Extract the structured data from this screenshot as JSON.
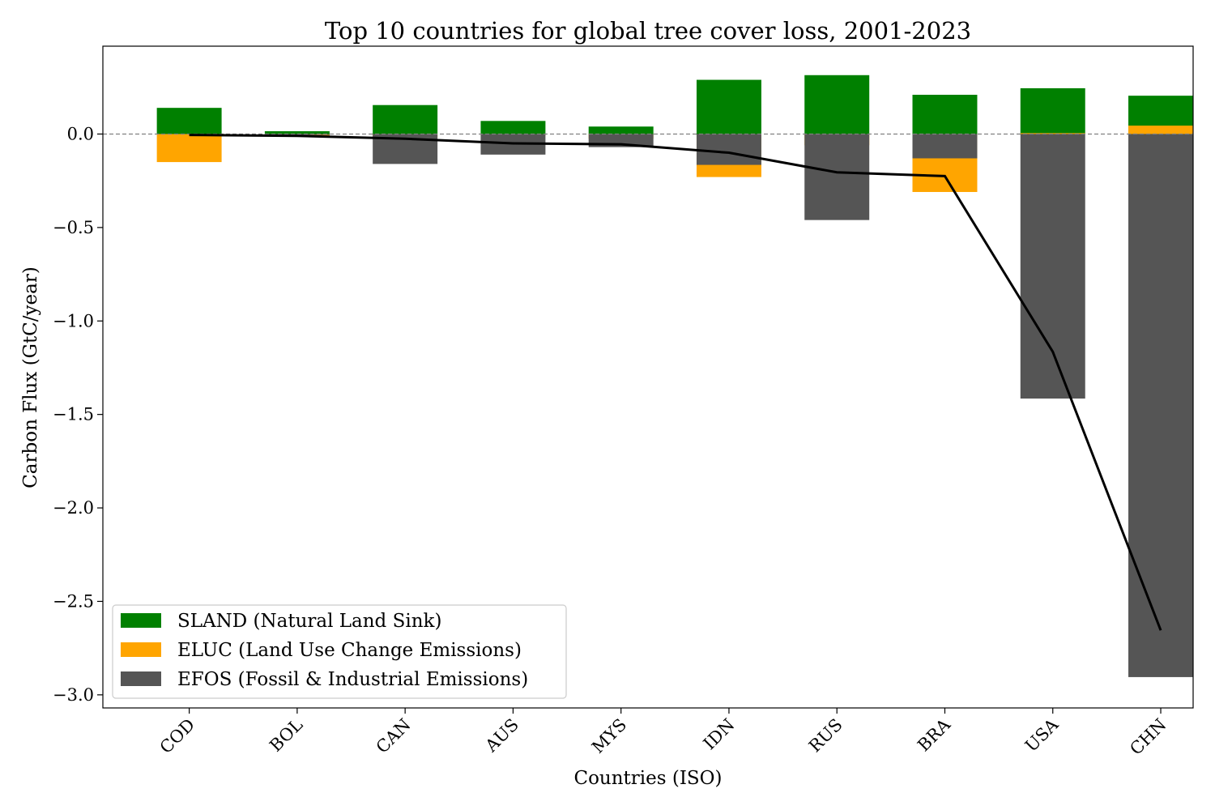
{
  "chart_data": {
    "type": "bar",
    "title": "Top 10 countries for global tree cover loss, 2001-2023",
    "xlabel": "Countries (ISO)",
    "ylabel": "Carbon Flux (GtC/year)",
    "ylim": [
      -3.07,
      0.47
    ],
    "yticks": [
      0.0,
      -0.5,
      -1.0,
      -1.5,
      -2.0,
      -2.5,
      -3.0
    ],
    "ytick_labels": [
      "0.0",
      "−0.5",
      "−1.0",
      "−1.5",
      "−2.0",
      "−2.5",
      "−3.0"
    ],
    "categories": [
      "COD",
      "BOL",
      "CAN",
      "AUS",
      "MYS",
      "IDN",
      "RUS",
      "BRA",
      "USA",
      "CHN"
    ],
    "series": [
      {
        "name": "SLAND (Natural Land Sink)",
        "color": "#008000",
        "values": [
          0.14,
          0.015,
          0.155,
          0.07,
          0.04,
          0.29,
          0.315,
          0.21,
          0.245,
          0.205
        ]
      },
      {
        "name": "ELUC (Land Use Change Emissions)",
        "color": "#FFA500",
        "values": [
          -0.15,
          -0.01,
          -0.02,
          -0.01,
          -0.025,
          -0.23,
          -0.06,
          -0.31,
          0.005,
          0.045
        ]
      },
      {
        "name": "EFOS (Fossil & Industrial Emissions)",
        "color": "#555555",
        "values": [
          0.0,
          -0.005,
          -0.16,
          -0.11,
          -0.07,
          -0.165,
          -0.46,
          -0.13,
          -1.415,
          -2.905
        ]
      }
    ],
    "net_line": {
      "color": "#000000",
      "values": [
        -0.005,
        -0.01,
        -0.025,
        -0.05,
        -0.055,
        -0.1,
        -0.205,
        -0.225,
        -1.165,
        -2.655
      ]
    },
    "reference_line": {
      "value": 0.0,
      "style": "dashed",
      "color": "#808080"
    },
    "grid": false,
    "legend_position": "lower-left"
  }
}
